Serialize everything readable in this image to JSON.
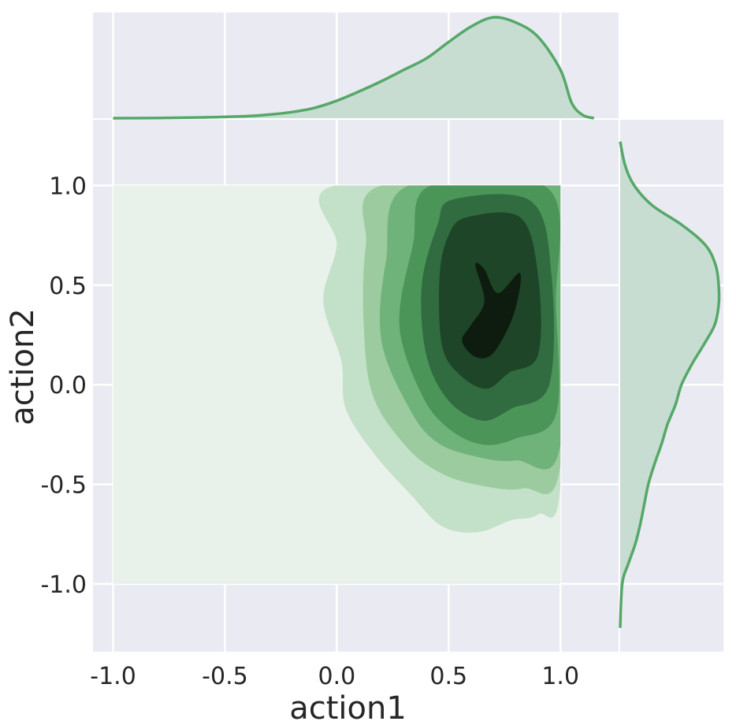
{
  "chart_data": {
    "type": "kde-jointplot",
    "xlabel": "action1",
    "ylabel": "action2",
    "xlim": [
      -1.09,
      1.26
    ],
    "ylim": [
      -1.34,
      1.33
    ],
    "x_ticks": [
      -1.0,
      -0.5,
      0.0,
      0.5,
      1.0
    ],
    "x_tick_labels": [
      "-1.0",
      "-0.5",
      "0.0",
      "0.5",
      "1.0"
    ],
    "y_ticks": [
      -1.0,
      -0.5,
      0.0,
      0.5,
      1.0
    ],
    "y_tick_labels": [
      "-1.0",
      "-0.5",
      "0.0",
      "0.5",
      "1.0"
    ],
    "grid": true,
    "colors": {
      "background": "#EAEAF2",
      "grid": "#FFFFFF",
      "line": "#55A868",
      "marginal_fill": "#C8DDD2",
      "levels": [
        "#E9F2EA",
        "#C3E0C8",
        "#9BCB9E",
        "#6FB37B",
        "#4B9559",
        "#306C40",
        "#1E4527",
        "#0E1C10"
      ]
    },
    "joint_kde": {
      "support_box": {
        "x": [
          -1.0,
          1.0
        ],
        "y": [
          -1.0,
          1.0
        ]
      },
      "contours": [
        {
          "level": 1,
          "points": [
            [
              -0.01,
              1.0
            ],
            [
              1.0,
              1.0
            ],
            [
              1.0,
              -0.5
            ],
            [
              0.9,
              -0.65
            ],
            [
              0.78,
              -0.68
            ],
            [
              0.63,
              -0.74
            ],
            [
              0.47,
              -0.71
            ],
            [
              0.33,
              -0.55
            ],
            [
              0.17,
              -0.35
            ],
            [
              0.04,
              -0.12
            ],
            [
              0.02,
              0.12
            ],
            [
              -0.06,
              0.42
            ],
            [
              0.0,
              0.7
            ]
          ]
        },
        {
          "level": 2,
          "points": [
            [
              0.2,
              1.0
            ],
            [
              1.0,
              1.0
            ],
            [
              1.0,
              -0.4
            ],
            [
              0.83,
              -0.52
            ],
            [
              0.62,
              -0.5
            ],
            [
              0.46,
              -0.44
            ],
            [
              0.31,
              -0.31
            ],
            [
              0.16,
              -0.05
            ],
            [
              0.12,
              0.32
            ],
            [
              0.13,
              0.7
            ]
          ]
        },
        {
          "level": 3,
          "points": [
            [
              0.32,
              1.0
            ],
            [
              1.0,
              1.0
            ],
            [
              1.0,
              -0.3
            ],
            [
              0.8,
              -0.38
            ],
            [
              0.62,
              -0.36
            ],
            [
              0.45,
              -0.29
            ],
            [
              0.33,
              -0.13
            ],
            [
              0.2,
              0.22
            ],
            [
              0.22,
              0.62
            ]
          ]
        },
        {
          "level": 4,
          "points": [
            [
              0.42,
              1.0
            ],
            [
              0.95,
              0.98
            ],
            [
              0.98,
              0.4
            ],
            [
              0.98,
              -0.15
            ],
            [
              0.8,
              -0.27
            ],
            [
              0.65,
              -0.3
            ],
            [
              0.5,
              -0.22
            ],
            [
              0.38,
              -0.05
            ],
            [
              0.28,
              0.3
            ],
            [
              0.34,
              0.7
            ]
          ]
        },
        {
          "level": 5,
          "points": [
            [
              0.52,
              0.93
            ],
            [
              0.87,
              0.92
            ],
            [
              0.96,
              0.55
            ],
            [
              0.95,
              0.0
            ],
            [
              0.78,
              -0.12
            ],
            [
              0.65,
              -0.18
            ],
            [
              0.5,
              -0.08
            ],
            [
              0.4,
              0.15
            ],
            [
              0.38,
              0.5
            ],
            [
              0.45,
              0.8
            ]
          ]
        },
        {
          "level": 6,
          "points": [
            [
              0.58,
              0.84
            ],
            [
              0.82,
              0.84
            ],
            [
              0.9,
              0.55
            ],
            [
              0.9,
              0.15
            ],
            [
              0.77,
              0.06
            ],
            [
              0.67,
              -0.02
            ],
            [
              0.55,
              0.05
            ],
            [
              0.47,
              0.2
            ],
            [
              0.46,
              0.55
            ],
            [
              0.5,
              0.75
            ]
          ]
        },
        {
          "level": 7,
          "points": [
            [
              0.66,
              0.58
            ],
            [
              0.72,
              0.46
            ],
            [
              0.82,
              0.56
            ],
            [
              0.79,
              0.35
            ],
            [
              0.7,
              0.16
            ],
            [
              0.62,
              0.14
            ],
            [
              0.56,
              0.22
            ],
            [
              0.6,
              0.3
            ],
            [
              0.66,
              0.42
            ],
            [
              0.62,
              0.6
            ]
          ]
        }
      ]
    },
    "marginal_x": {
      "x": [
        -1.0,
        -0.8,
        -0.6,
        -0.4,
        -0.3,
        -0.2,
        -0.1,
        0.0,
        0.1,
        0.2,
        0.3,
        0.4,
        0.5,
        0.6,
        0.7,
        0.8,
        0.9,
        1.0,
        1.05,
        1.1,
        1.15
      ],
      "density": [
        0.0,
        0.002,
        0.008,
        0.02,
        0.035,
        0.06,
        0.1,
        0.17,
        0.26,
        0.36,
        0.47,
        0.58,
        0.74,
        0.89,
        0.98,
        0.93,
        0.79,
        0.47,
        0.15,
        0.03,
        0.0
      ]
    },
    "marginal_y": {
      "y": [
        -1.22,
        -1.0,
        -0.9,
        -0.8,
        -0.7,
        -0.6,
        -0.5,
        -0.4,
        -0.3,
        -0.2,
        -0.1,
        0.0,
        0.1,
        0.2,
        0.3,
        0.4,
        0.5,
        0.6,
        0.7,
        0.8,
        0.9,
        1.0,
        1.1,
        1.22
      ],
      "density": [
        0.0,
        0.02,
        0.08,
        0.15,
        0.2,
        0.24,
        0.28,
        0.34,
        0.41,
        0.47,
        0.55,
        0.61,
        0.71,
        0.83,
        0.94,
        0.98,
        0.98,
        0.95,
        0.85,
        0.62,
        0.32,
        0.14,
        0.05,
        0.0
      ]
    }
  }
}
